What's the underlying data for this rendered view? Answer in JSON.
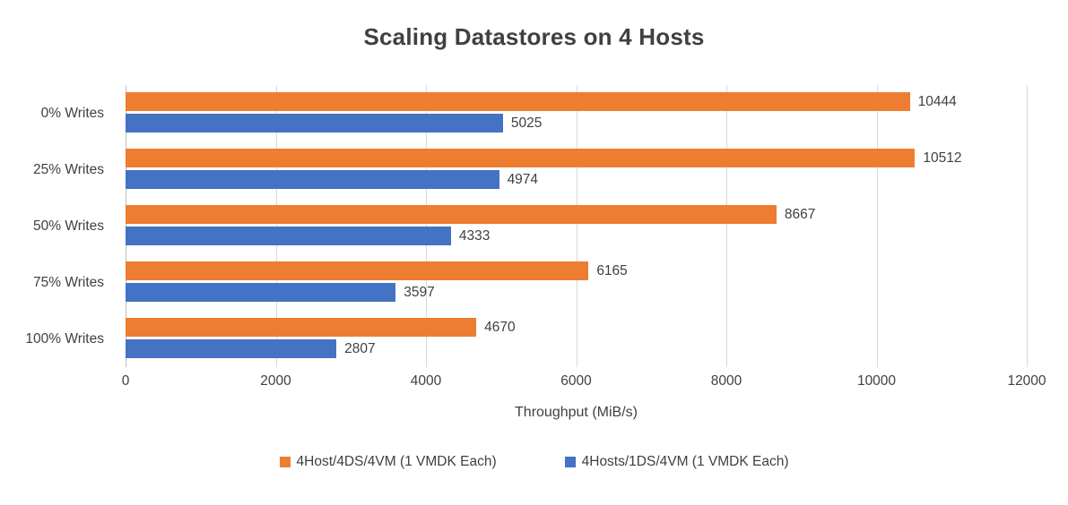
{
  "chart_data": {
    "type": "bar",
    "orientation": "horizontal",
    "title": "Scaling Datastores on 4 Hosts",
    "categories": [
      "0% Writes",
      "25% Writes",
      "50% Writes",
      "75% Writes",
      "100% Writes"
    ],
    "series": [
      {
        "name": "4Host/4DS/4VM (1 VMDK Each)",
        "color": "#ED7D31",
        "values": [
          10444,
          10512,
          8667,
          6165,
          4670
        ]
      },
      {
        "name": "4Hosts/1DS/4VM (1 VMDK Each)",
        "color": "#4472C4",
        "values": [
          5025,
          4974,
          4333,
          3597,
          2807
        ]
      }
    ],
    "xlabel": "Throughput (MiB/s)",
    "xlim": [
      0,
      12000
    ],
    "xticks": [
      0,
      2000,
      4000,
      6000,
      8000,
      10000,
      12000
    ],
    "grid": true,
    "legend_position": "bottom",
    "colors": {
      "title_text": "#404040",
      "axis_text": "#404040",
      "gridline": "#d9d9d9"
    }
  }
}
